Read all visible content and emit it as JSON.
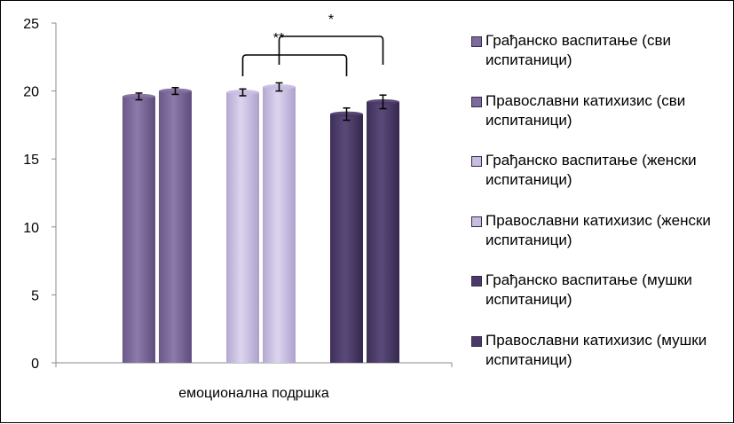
{
  "chart_data": {
    "type": "bar",
    "categories": [
      "емоционална подршка"
    ],
    "ylim": [
      0,
      25
    ],
    "yticks": [
      0,
      5,
      10,
      15,
      20,
      25
    ],
    "grid": false,
    "legend_position": "right",
    "series": [
      {
        "name": "Грађанско васпитање (сви испитаници)",
        "value": 19.6,
        "error": 0.25,
        "color": "#7d6a9c"
      },
      {
        "name": "Православни катихизис (сви испитаници)",
        "value": 20.0,
        "error": 0.25,
        "color": "#7d6a9c"
      },
      {
        "name": "Грађанско васпитање (женски испитаници)",
        "value": 19.9,
        "error": 0.25,
        "color": "#c6bce0"
      },
      {
        "name": "Православни катихизис (женски испитаници)",
        "value": 20.3,
        "error": 0.3,
        "color": "#c6bce0"
      },
      {
        "name": "Грађанско васпитање (мушки испитаници)",
        "value": 18.3,
        "error": 0.45,
        "color": "#4a3a68"
      },
      {
        "name": "Православни катихизис (мушки испитаници)",
        "value": 19.2,
        "error": 0.5,
        "color": "#4a3a68"
      }
    ],
    "annotations": [
      {
        "text": "**",
        "between": [
          2,
          4
        ]
      },
      {
        "text": "*",
        "between": [
          3,
          5
        ]
      }
    ]
  }
}
